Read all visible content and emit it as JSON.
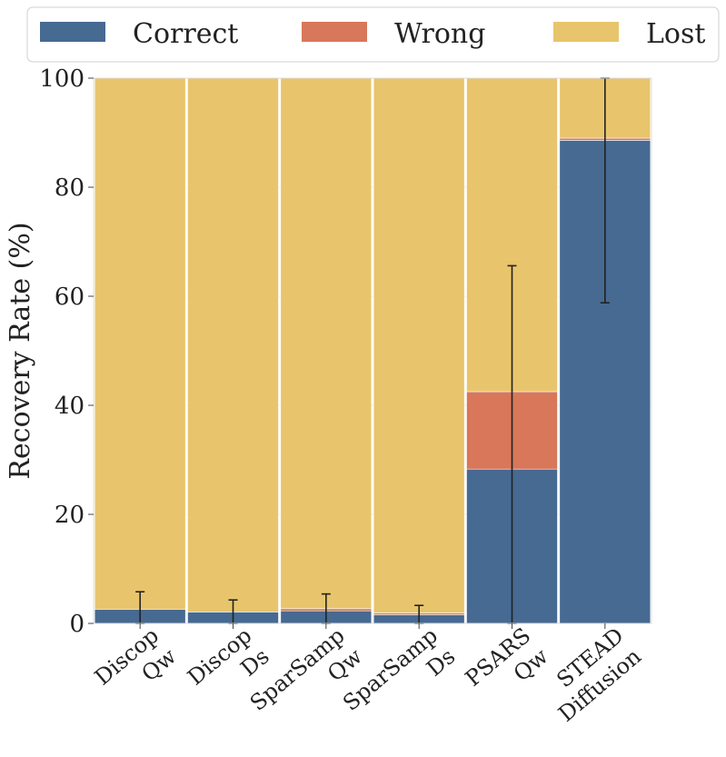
{
  "chart_data": {
    "type": "bar",
    "stacked": true,
    "categories": [
      [
        "Discop",
        "Qw"
      ],
      [
        "Discop",
        "Ds"
      ],
      [
        "SparSamp",
        "Qw"
      ],
      [
        "SparSamp",
        "Ds"
      ],
      [
        "PSARS",
        "Qw"
      ],
      [
        "STEAD",
        "Diffusion"
      ]
    ],
    "series": [
      {
        "name": "Correct",
        "color": "#466a92",
        "values": [
          2.6,
          2.1,
          2.3,
          1.6,
          28.3,
          88.6
        ]
      },
      {
        "name": "Wrong",
        "color": "#d8775a",
        "values": [
          0.0,
          0.0,
          0.4,
          0.3,
          14.2,
          0.4
        ]
      },
      {
        "name": "Lost",
        "color": "#e8c56c",
        "values": [
          97.4,
          97.9,
          97.3,
          98.1,
          57.5,
          11.0
        ]
      }
    ],
    "error_bars": [
      {
        "low": 0.0,
        "high": 5.8
      },
      {
        "low": 0.0,
        "high": 4.3
      },
      {
        "low": 0.0,
        "high": 5.4
      },
      {
        "low": 0.0,
        "high": 3.3
      },
      {
        "low": 0.0,
        "high": 65.6
      },
      {
        "low": 58.8,
        "high": 100.0
      }
    ],
    "ylabel": "Recovery Rate (%)",
    "xlabel": "",
    "ylim": [
      0,
      100
    ],
    "yticks": [
      "0",
      "20",
      "40",
      "60",
      "80",
      "100"
    ],
    "grid": "horizontal",
    "legend": "top"
  }
}
